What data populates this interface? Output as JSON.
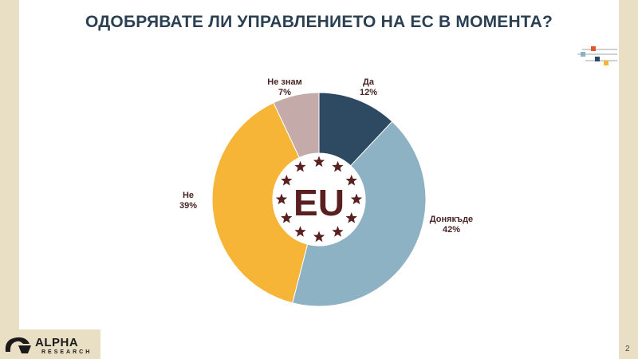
{
  "title": "ОДОБРЯВАТЕ ЛИ УПРАВЛЕНИЕТО НА ЕС В МОМЕНТА?",
  "center_text": "EU",
  "page_number": "2",
  "logo": {
    "word": "ALPHA",
    "sub": "RESEARCH"
  },
  "colors": {
    "background_band": "#e9dfc4",
    "title": "#2b4052",
    "label": "#4a2424",
    "star": "#5a2020"
  },
  "chart_data": {
    "type": "pie",
    "subtype": "donut",
    "title": "ОДОБРЯВАТЕ ЛИ УПРАВЛЕНИЕТО НА ЕС В МОМЕНТА?",
    "slices": [
      {
        "label": "Да",
        "value": 12,
        "display": "12%",
        "color": "#2e4a62"
      },
      {
        "label": "Донякъде",
        "value": 42,
        "display": "42%",
        "color": "#8db2c4"
      },
      {
        "label": "Не",
        "value": 39,
        "display": "39%",
        "color": "#f6b536"
      },
      {
        "label": "Не знам",
        "value": 7,
        "display": "7%",
        "color": "#c4aaa8"
      }
    ]
  }
}
